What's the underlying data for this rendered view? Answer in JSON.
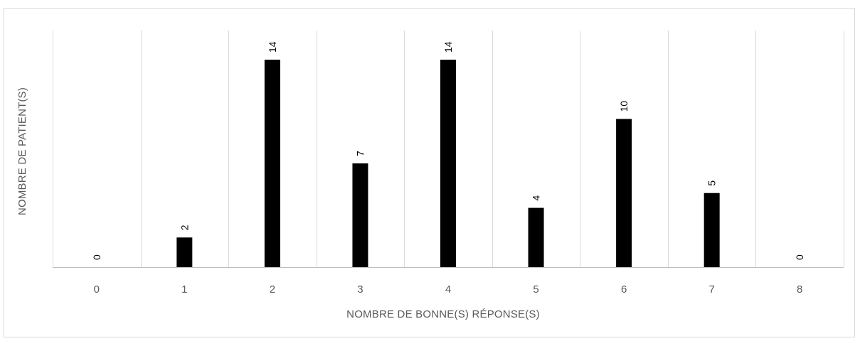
{
  "chart_data": {
    "type": "bar",
    "title": "",
    "xlabel": "NOMBRE DE BONNE(S) RÉPONSE(S)",
    "ylabel": "NOMBRE DE PATIENT(S)",
    "categories": [
      "0",
      "1",
      "2",
      "3",
      "4",
      "5",
      "6",
      "7",
      "8"
    ],
    "values": [
      0,
      2,
      14,
      7,
      14,
      4,
      10,
      5,
      0
    ],
    "ylim": [
      0,
      14
    ],
    "bar_color": "#000000",
    "grid": "vertical",
    "legend": "none",
    "data_labels": "rotated"
  }
}
